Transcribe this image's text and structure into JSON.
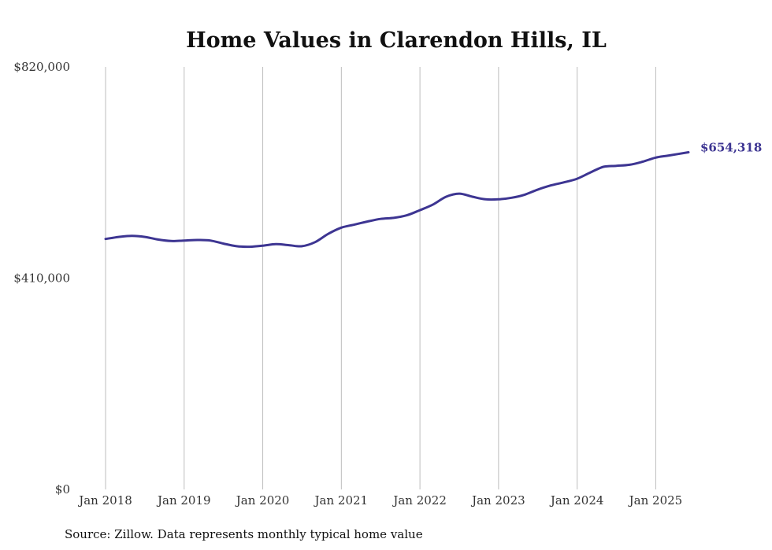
{
  "chart_data": {
    "type": "line",
    "title": "Home Values in Clarendon Hills, IL",
    "xlabel": "",
    "ylabel": "",
    "x_start": "2018-01",
    "x_end": "2025-06",
    "xlim": [
      "2018-01",
      "2025-06"
    ],
    "ylim": [
      0,
      820000
    ],
    "y_ticks": [
      0,
      410000,
      820000
    ],
    "y_tick_labels": [
      "$0",
      "$410,000",
      "$820,000"
    ],
    "x_ticks": [
      "2018-01",
      "2019-01",
      "2020-01",
      "2021-01",
      "2022-01",
      "2023-01",
      "2024-01",
      "2025-01"
    ],
    "x_tick_labels": [
      "Jan 2018",
      "Jan 2019",
      "Jan 2020",
      "Jan 2021",
      "Jan 2022",
      "Jan 2023",
      "Jan 2024",
      "Jan 2025"
    ],
    "grid": {
      "vertical": true,
      "horizontal": false
    },
    "legend": "none",
    "series": [
      {
        "color": "#3d3592",
        "points": [
          [
            "2018-01",
            486000
          ],
          [
            "2018-03",
            490000
          ],
          [
            "2018-05",
            492000
          ],
          [
            "2018-07",
            490000
          ],
          [
            "2018-09",
            485000
          ],
          [
            "2018-11",
            482000
          ],
          [
            "2019-01",
            483000
          ],
          [
            "2019-03",
            484000
          ],
          [
            "2019-05",
            483000
          ],
          [
            "2019-07",
            477000
          ],
          [
            "2019-09",
            472000
          ],
          [
            "2019-11",
            471000
          ],
          [
            "2020-01",
            473000
          ],
          [
            "2020-03",
            476000
          ],
          [
            "2020-05",
            474000
          ],
          [
            "2020-07",
            472000
          ],
          [
            "2020-09",
            480000
          ],
          [
            "2020-11",
            496000
          ],
          [
            "2021-01",
            508000
          ],
          [
            "2021-03",
            514000
          ],
          [
            "2021-05",
            520000
          ],
          [
            "2021-07",
            525000
          ],
          [
            "2021-09",
            527000
          ],
          [
            "2021-11",
            532000
          ],
          [
            "2022-01",
            542000
          ],
          [
            "2022-03",
            553000
          ],
          [
            "2022-05",
            568000
          ],
          [
            "2022-07",
            574000
          ],
          [
            "2022-09",
            568000
          ],
          [
            "2022-11",
            563000
          ],
          [
            "2023-01",
            563000
          ],
          [
            "2023-03",
            566000
          ],
          [
            "2023-05",
            572000
          ],
          [
            "2023-07",
            582000
          ],
          [
            "2023-09",
            590000
          ],
          [
            "2023-11",
            596000
          ],
          [
            "2024-01",
            603000
          ],
          [
            "2024-03",
            615000
          ],
          [
            "2024-05",
            626000
          ],
          [
            "2024-07",
            628000
          ],
          [
            "2024-09",
            630000
          ],
          [
            "2024-11",
            636000
          ],
          [
            "2025-01",
            644000
          ],
          [
            "2025-03",
            648000
          ],
          [
            "2025-06",
            654318
          ]
        ]
      }
    ],
    "end_label": "$654,318"
  },
  "footer": {
    "source_text": "Source: Zillow. Data represents monthly typical home value"
  }
}
